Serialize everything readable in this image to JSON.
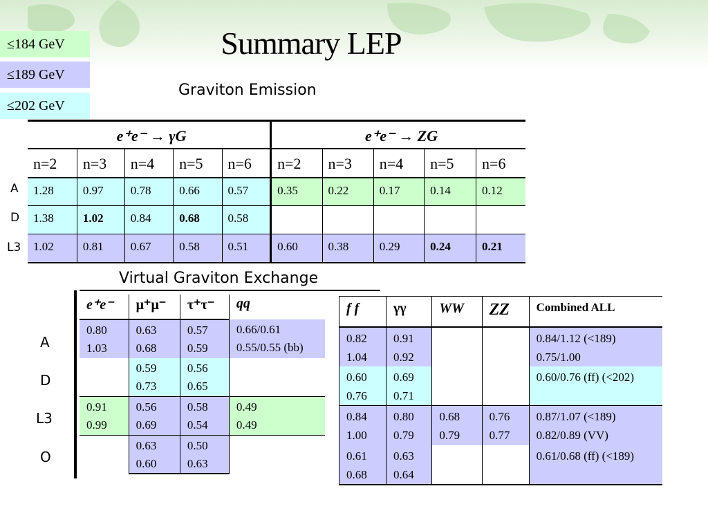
{
  "title": "Summary LEP",
  "legend": [
    {
      "label": "≤184 GeV",
      "color": "#ccffcc"
    },
    {
      "label": "≤189 GeV",
      "color": "#ccccff"
    },
    {
      "label": "≤202 GeV",
      "color": "#ccffff"
    }
  ],
  "graviton_emission": {
    "subtitle": "Graviton Emission",
    "group1": "e⁺e⁻ → γG",
    "group2": "e⁺e⁻ → ZG",
    "columns": [
      "n=2",
      "n=3",
      "n=4",
      "n=5",
      "n=6",
      "n=2",
      "n=3",
      "n=4",
      "n=5",
      "n=6"
    ],
    "rows": [
      {
        "label": "A",
        "values": [
          "1.28",
          "0.97",
          "0.78",
          "0.66",
          "0.57",
          "0.35",
          "0.22",
          "0.17",
          "0.14",
          "0.12"
        ]
      },
      {
        "label": "D",
        "values": [
          "1.38",
          "1.02",
          "0.84",
          "0.68",
          "0.58",
          "",
          "",
          "",
          "",
          ""
        ]
      },
      {
        "label": "L3",
        "values": [
          "1.02",
          "0.81",
          "0.67",
          "0.58",
          "0.51",
          "0.60",
          "0.38",
          "0.29",
          "0.24",
          "0.21"
        ]
      }
    ]
  },
  "virtual_exchange": {
    "subtitle": "Virtual Graviton Exchange",
    "columns": [
      "e⁺e⁻",
      "μ⁺μ⁻",
      "τ⁺τ⁻",
      "qq"
    ],
    "row_labels": [
      "A",
      "D",
      "L3",
      "O"
    ],
    "rows": [
      [
        "0.80\n1.03",
        "0.63\n0.68",
        "0.57\n0.59",
        "0.66/0.61\n0.55/0.55 (bb)"
      ],
      [
        "",
        "0.59\n0.73",
        "0.56\n0.65",
        ""
      ],
      [
        "0.91\n0.99",
        "0.56\n0.69",
        "0.58\n0.54",
        "0.49\n0.49"
      ],
      [
        "",
        "0.63\n0.60",
        "0.50\n0.63",
        ""
      ]
    ]
  },
  "combined": {
    "columns": [
      "f f",
      "γγ",
      "WW",
      "ZZ",
      "Combined ALL"
    ],
    "rows": [
      [
        "0.82\n1.04",
        "0.91\n0.92",
        "",
        "",
        "0.84/1.12 (<189)\n0.75/1.00"
      ],
      [
        "0.60\n0.76",
        "0.69\n0.71",
        "",
        "",
        "0.60/0.76 (ff) (<202)"
      ],
      [
        "0.84\n1.00",
        "0.80\n0.79",
        "0.68\n0.79",
        "0.76\n0.77",
        "0.87/1.07 (<189)\n0.82/0.89 (VV)"
      ],
      [
        "0.61\n0.68",
        "0.63\n0.64",
        "",
        "",
        "0.61/0.68 (ff) (<189)"
      ]
    ]
  }
}
